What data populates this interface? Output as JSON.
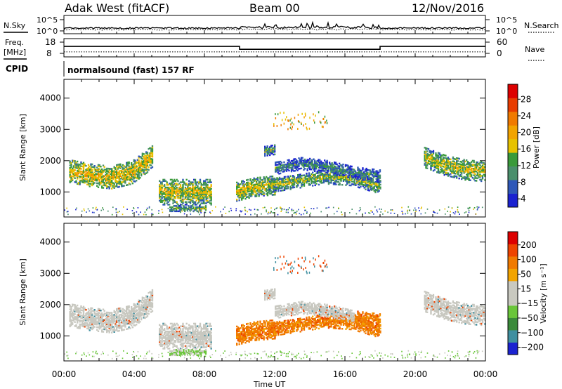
{
  "header": {
    "site": "Adak West (fitACF)",
    "beam": "Beam 00",
    "date": "12/Nov/2016"
  },
  "strips": {
    "nsky_label": "N.Sky",
    "nsearch_label": "N.Search",
    "noise_ticks": [
      "10^5",
      "10^0"
    ],
    "freq_label_1": "Freq.",
    "freq_label_2": "[MHz]",
    "freq_ticks": [
      "18",
      "8"
    ],
    "nave_label": "Nave",
    "nave_ticks": [
      "60",
      "0"
    ],
    "cpid_label": "CPID",
    "cpid_text": "normalsound (fast) 157 RF"
  },
  "colors": {
    "power_scale": [
      "#1b22d0",
      "#2f58b8",
      "#4a8f6c",
      "#3a9a3a",
      "#e6c200",
      "#f2a400",
      "#f07a00",
      "#e83c00",
      "#dd0000"
    ],
    "velocity_scale": [
      "#dd0000",
      "#ee4400",
      "#f07a00",
      "#f2a400",
      "#c9c9c0",
      "#c9c9c0",
      "#6ac63a",
      "#3a8a3a",
      "#3f8fa0",
      "#1b22d0"
    ],
    "grey": "#c8c8c0"
  },
  "chart_data": [
    {
      "type": "line",
      "name_left": "N.Sky",
      "name_right": "N.Search",
      "ylim": [
        0,
        100000
      ],
      "yscale": "log",
      "ticks": [
        "10^5",
        "10^0"
      ]
    },
    {
      "type": "line",
      "name_left": "Freq. [MHz]",
      "name_right": "Nave",
      "ylim_left": [
        8,
        18
      ],
      "ylim_right": [
        0,
        60
      ],
      "ticks_left": [
        "18",
        "8"
      ],
      "ticks_right": [
        "60",
        "0"
      ],
      "freq_segments": [
        [
          0,
          10,
          14.2
        ],
        [
          10,
          18,
          11.6
        ],
        [
          18,
          24,
          14.2
        ]
      ],
      "nave_level": 8
    },
    {
      "type": "heatmap",
      "quantity": "Power",
      "ylabel": "Slant Range [km]",
      "yticks": [
        1000,
        2000,
        3000,
        4000
      ],
      "ylim": [
        200,
        4600
      ],
      "xlim": [
        0,
        24
      ],
      "colorbar_label": "Power [dB]",
      "colorbar_ticks": [
        "28",
        "24",
        "20",
        "16",
        "12",
        "8",
        "4"
      ],
      "colorbar_range": [
        0,
        30
      ],
      "regions": [
        {
          "t0": 0.3,
          "t1": 5.0,
          "r_center": [
            1650,
            1520,
            1450,
            1600,
            2100
          ],
          "thick": 360,
          "level": 14
        },
        {
          "t0": 5.4,
          "t1": 8.4,
          "r_center": [
            1000,
            1000,
            1000,
            1000
          ],
          "thick": 420,
          "level": 12
        },
        {
          "t0": 6.0,
          "t1": 8.1,
          "r_center": [
            460,
            460
          ],
          "thick": 90,
          "level": 10
        },
        {
          "t0": 9.8,
          "t1": 12.0,
          "r_center": [
            1000,
            1150,
            1200
          ],
          "thick": 300,
          "level": 13
        },
        {
          "t0": 11.6,
          "t1": 18.0,
          "r_center": [
            1200,
            1330,
            1480,
            1420,
            1150
          ],
          "thick": 230,
          "level": 10
        },
        {
          "t0": 12.0,
          "t1": 18.0,
          "r_center": [
            1750,
            1900,
            1800,
            1600,
            1500
          ],
          "thick": 200,
          "level": 6
        },
        {
          "t0": 11.4,
          "t1": 12.0,
          "r_center": [
            2300,
            2350
          ],
          "thick": 160,
          "level": 8
        },
        {
          "t0": 20.5,
          "t1": 24.0,
          "r_center": [
            2100,
            1850,
            1700,
            1650
          ],
          "thick": 330,
          "level": 12
        }
      ],
      "xticks": [
        "00:00",
        "04:00",
        "08:00",
        "12:00",
        "16:00",
        "20:00",
        "00:00"
      ]
    },
    {
      "type": "heatmap",
      "quantity": "Velocity",
      "ylabel": "Slant Range [km]",
      "yticks": [
        1000,
        2000,
        3000,
        4000
      ],
      "ylim": [
        200,
        4600
      ],
      "xlim": [
        0,
        24
      ],
      "colorbar_label": "Velocity [m s⁻¹]",
      "colorbar_ticks": [
        "200",
        "100",
        "50",
        "15",
        "−15",
        "−50",
        "−100",
        "−200"
      ],
      "colorbar_range": [
        -250,
        250
      ],
      "xlabel": "Time UT",
      "xticks": [
        "00:00",
        "04:00",
        "08:00",
        "12:00",
        "16:00",
        "20:00",
        "00:00"
      ]
    }
  ]
}
